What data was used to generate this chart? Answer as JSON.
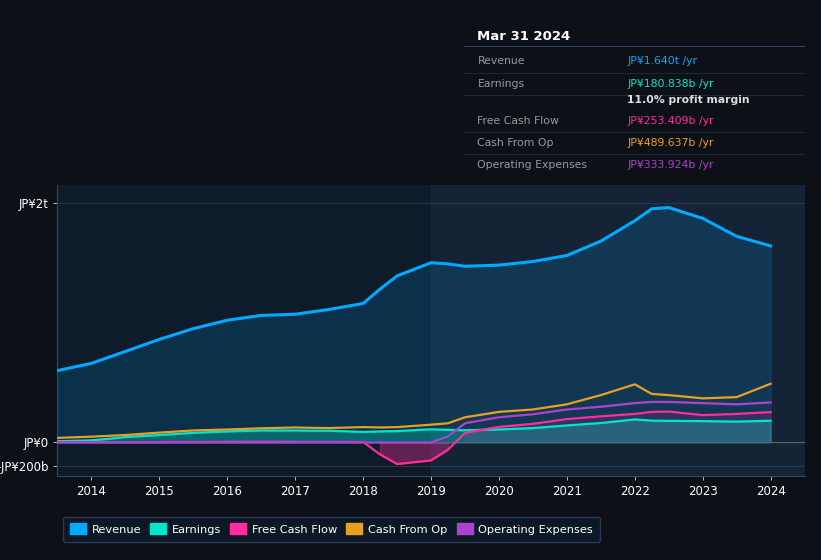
{
  "background_color": "#0d1117",
  "plot_bg_color": "#0d1b2a",
  "years": [
    2013.5,
    2014,
    2014.25,
    2014.5,
    2015,
    2015.5,
    2016,
    2016.5,
    2017,
    2017.25,
    2017.5,
    2018,
    2018.25,
    2018.5,
    2019,
    2019.25,
    2019.5,
    2020,
    2020.5,
    2021,
    2021.5,
    2022,
    2022.25,
    2022.5,
    2023,
    2023.5,
    2024
  ],
  "revenue": [
    600,
    660,
    710,
    760,
    860,
    950,
    1020,
    1060,
    1070,
    1090,
    1110,
    1160,
    1280,
    1390,
    1500,
    1490,
    1470,
    1480,
    1510,
    1560,
    1680,
    1850,
    1950,
    1960,
    1870,
    1720,
    1640
  ],
  "earnings": [
    10,
    18,
    30,
    45,
    62,
    80,
    92,
    100,
    100,
    98,
    98,
    88,
    92,
    95,
    110,
    105,
    102,
    108,
    120,
    142,
    162,
    192,
    182,
    180,
    178,
    174,
    181
  ],
  "free_cash_flow": [
    2,
    2,
    2,
    2,
    3,
    4,
    5,
    6,
    5,
    5,
    5,
    4,
    -100,
    -180,
    -150,
    -60,
    80,
    130,
    155,
    195,
    218,
    238,
    255,
    258,
    228,
    238,
    253
  ],
  "cash_from_op": [
    38,
    48,
    55,
    62,
    82,
    100,
    108,
    118,
    125,
    122,
    120,
    128,
    125,
    128,
    148,
    160,
    210,
    255,
    275,
    318,
    395,
    485,
    405,
    395,
    368,
    378,
    490
  ],
  "operating_expenses": [
    0,
    0,
    0,
    0,
    0,
    0,
    0,
    0,
    0,
    0,
    0,
    0,
    0,
    0,
    0,
    50,
    160,
    210,
    235,
    275,
    298,
    328,
    338,
    338,
    328,
    318,
    334
  ],
  "revenue_color": "#00aaff",
  "earnings_color": "#00e5cc",
  "free_cash_flow_color": "#ff2d9b",
  "cash_from_op_color": "#e8a020",
  "operating_expenses_color": "#aa44cc",
  "xlim": [
    2013.5,
    2024.5
  ],
  "ylim_min": -280,
  "ylim_max": 2150,
  "xticks": [
    2014,
    2015,
    2016,
    2017,
    2018,
    2019,
    2020,
    2021,
    2022,
    2023,
    2024
  ],
  "ytick_positions": [
    -200,
    0,
    2000
  ],
  "ytick_labels": [
    "-JP¥200b",
    "JP¥0",
    "JP¥2t"
  ],
  "shade_start": 2019.0,
  "info_box": {
    "title": "Mar 31 2024",
    "rows": [
      {
        "label": "Revenue",
        "value": "JP¥1.640t /yr",
        "value_color": "#00aaff"
      },
      {
        "label": "Earnings",
        "value": "JP¥180.838b /yr",
        "value_color": "#00e5cc"
      },
      {
        "label": "",
        "value": "11.0% profit margin",
        "value_color": "#dddddd"
      },
      {
        "label": "Free Cash Flow",
        "value": "JP¥253.409b /yr",
        "value_color": "#ff2d9b"
      },
      {
        "label": "Cash From Op",
        "value": "JP¥489.637b /yr",
        "value_color": "#e8a020"
      },
      {
        "label": "Operating Expenses",
        "value": "JP¥333.924b /yr",
        "value_color": "#aa44cc"
      }
    ]
  },
  "legend_items": [
    {
      "label": "Revenue",
      "color": "#00aaff"
    },
    {
      "label": "Earnings",
      "color": "#00e5cc"
    },
    {
      "label": "Free Cash Flow",
      "color": "#ff2d9b"
    },
    {
      "label": "Cash From Op",
      "color": "#e8a020"
    },
    {
      "label": "Operating Expenses",
      "color": "#aa44cc"
    }
  ]
}
